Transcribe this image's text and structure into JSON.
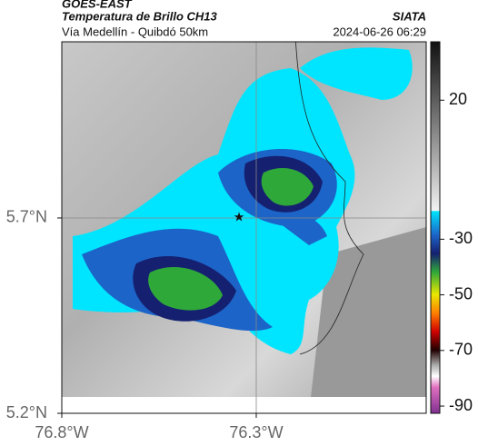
{
  "header": {
    "source": "GOES-EAST",
    "product": "Temperatura de Brillo CH13",
    "agency": "SIATA",
    "route": "Vía Medellín - Quibdó 50km",
    "datetime": "2024-06-26 06:29"
  },
  "map": {
    "xlim": [
      -76.8,
      -75.863
    ],
    "ylim": [
      5.2,
      6.151
    ],
    "xticks": [
      {
        "value": -76.8,
        "label": "76.8°W"
      },
      {
        "value": -76.3,
        "label": "76.3°W"
      }
    ],
    "yticks": [
      {
        "value": 5.7,
        "label": "5.7°N"
      },
      {
        "value": 5.2,
        "label": "5.2°N"
      }
    ]
  },
  "colorbar": {
    "lim": [
      -92.6,
      41
    ],
    "ticks": [
      20,
      -30,
      -50,
      -70,
      -90
    ]
  }
}
